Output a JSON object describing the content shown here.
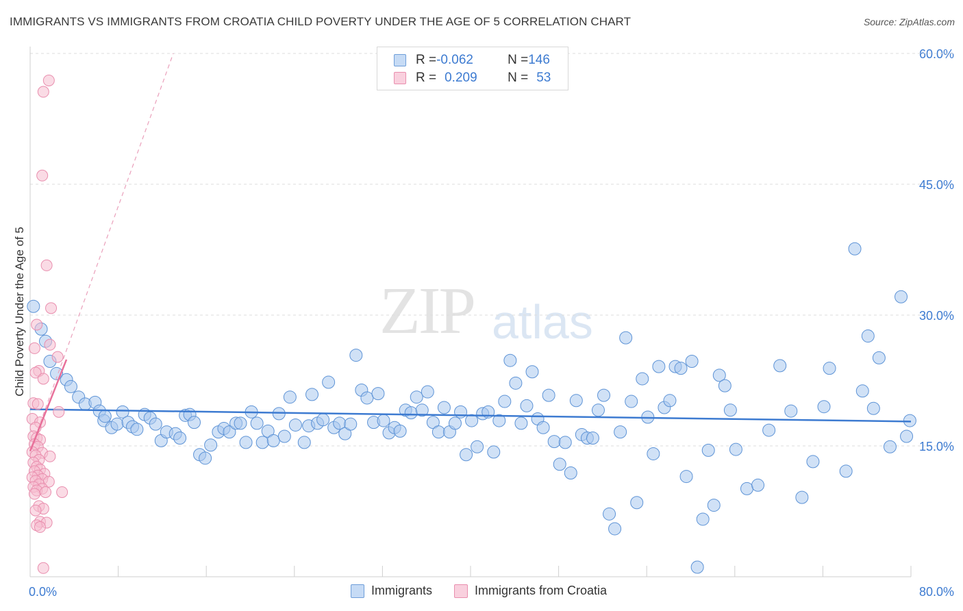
{
  "title": "IMMIGRANTS VS IMMIGRANTS FROM CROATIA CHILD POVERTY UNDER THE AGE OF 5 CORRELATION CHART",
  "source": "Source: ZipAtlas.com",
  "watermark": {
    "zip": "ZIP",
    "atlas": "atlas"
  },
  "legend_top": {
    "rows": [
      {
        "r_label": "R = ",
        "r_value": "-0.062",
        "n_label": "N = ",
        "n_value": "146"
      },
      {
        "r_label": "R = ",
        "r_value": "0.209",
        "n_label": "N = ",
        "n_value": "53"
      }
    ]
  },
  "legend_bottom": [
    "Immigrants",
    "Immigrants from Croatia"
  ],
  "colors": {
    "blue": "#3d7bd1",
    "blue_fill": "#aac8ee",
    "pink": "#e8709a",
    "pink_fill": "#f6bed0",
    "grid": "#dddddd",
    "tick_label": "#3d7bd1"
  },
  "chart_data": {
    "type": "scatter",
    "title": "IMMIGRANTS VS IMMIGRANTS FROM CROATIA CHILD POVERTY UNDER THE AGE OF 5 CORRELATION CHART",
    "xlabel": "",
    "ylabel": "Child Poverty Under the Age of 5",
    "xlim": [
      0,
      80
    ],
    "ylim": [
      0,
      60
    ],
    "x_tick_labels": [
      "0.0%",
      "80.0%"
    ],
    "y_ticks": [
      15,
      30,
      45,
      60
    ],
    "y_tick_labels": [
      "15.0%",
      "30.0%",
      "45.0%",
      "60.0%"
    ],
    "grid": true,
    "legend_position": "top-center",
    "series": [
      {
        "name": "Immigrants",
        "color": "#3d7bd1",
        "trend": {
          "x": [
            0,
            80
          ],
          "y": [
            19.2,
            17.8
          ]
        },
        "points": [
          [
            0.3,
            31.0
          ],
          [
            1.0,
            28.4
          ],
          [
            1.4,
            27.0
          ],
          [
            1.8,
            24.7
          ],
          [
            2.4,
            23.3
          ],
          [
            3.3,
            22.6
          ],
          [
            3.7,
            21.8
          ],
          [
            4.4,
            20.6
          ],
          [
            5.0,
            19.8
          ],
          [
            5.9,
            20.0
          ],
          [
            6.3,
            19.0
          ],
          [
            6.7,
            17.9
          ],
          [
            6.8,
            18.4
          ],
          [
            7.4,
            17.1
          ],
          [
            7.9,
            17.5
          ],
          [
            8.4,
            18.9
          ],
          [
            8.9,
            17.7
          ],
          [
            9.3,
            17.2
          ],
          [
            9.7,
            16.9
          ],
          [
            10.4,
            18.6
          ],
          [
            10.9,
            18.2
          ],
          [
            11.4,
            17.5
          ],
          [
            11.9,
            15.6
          ],
          [
            12.4,
            16.6
          ],
          [
            13.2,
            16.4
          ],
          [
            13.6,
            15.9
          ],
          [
            14.1,
            18.5
          ],
          [
            14.5,
            18.6
          ],
          [
            14.9,
            17.7
          ],
          [
            15.4,
            14.0
          ],
          [
            15.9,
            13.6
          ],
          [
            16.4,
            15.1
          ],
          [
            17.1,
            16.6
          ],
          [
            17.6,
            17.0
          ],
          [
            18.1,
            16.6
          ],
          [
            18.7,
            17.6
          ],
          [
            19.1,
            17.6
          ],
          [
            19.6,
            15.4
          ],
          [
            20.1,
            18.9
          ],
          [
            20.6,
            17.6
          ],
          [
            21.1,
            15.4
          ],
          [
            21.6,
            16.7
          ],
          [
            22.1,
            15.6
          ],
          [
            22.6,
            18.7
          ],
          [
            23.1,
            16.1
          ],
          [
            23.6,
            20.6
          ],
          [
            24.1,
            17.4
          ],
          [
            24.9,
            15.4
          ],
          [
            25.3,
            17.3
          ],
          [
            25.6,
            20.9
          ],
          [
            26.1,
            17.6
          ],
          [
            26.6,
            18.0
          ],
          [
            27.1,
            22.3
          ],
          [
            27.6,
            17.1
          ],
          [
            28.1,
            17.6
          ],
          [
            28.6,
            16.4
          ],
          [
            29.1,
            17.5
          ],
          [
            29.6,
            25.4
          ],
          [
            30.1,
            21.4
          ],
          [
            30.6,
            20.5
          ],
          [
            31.2,
            17.7
          ],
          [
            31.6,
            21.0
          ],
          [
            32.1,
            17.9
          ],
          [
            32.6,
            16.5
          ],
          [
            33.1,
            17.1
          ],
          [
            33.6,
            16.7
          ],
          [
            34.1,
            19.1
          ],
          [
            34.6,
            18.8
          ],
          [
            35.1,
            20.6
          ],
          [
            35.6,
            19.1
          ],
          [
            36.1,
            21.2
          ],
          [
            36.6,
            17.7
          ],
          [
            37.1,
            16.6
          ],
          [
            37.6,
            19.4
          ],
          [
            38.1,
            16.6
          ],
          [
            38.6,
            17.6
          ],
          [
            39.1,
            18.9
          ],
          [
            39.6,
            14.0
          ],
          [
            40.1,
            17.9
          ],
          [
            40.6,
            14.9
          ],
          [
            41.1,
            18.7
          ],
          [
            41.6,
            18.9
          ],
          [
            42.1,
            14.3
          ],
          [
            42.6,
            17.9
          ],
          [
            43.1,
            20.1
          ],
          [
            43.6,
            24.8
          ],
          [
            44.1,
            22.2
          ],
          [
            44.6,
            17.6
          ],
          [
            45.1,
            19.6
          ],
          [
            45.6,
            23.5
          ],
          [
            46.1,
            18.1
          ],
          [
            46.6,
            17.1
          ],
          [
            47.1,
            20.8
          ],
          [
            47.6,
            15.5
          ],
          [
            48.1,
            12.9
          ],
          [
            48.6,
            15.4
          ],
          [
            49.1,
            11.9
          ],
          [
            49.6,
            20.2
          ],
          [
            50.1,
            16.3
          ],
          [
            50.6,
            15.9
          ],
          [
            51.1,
            15.9
          ],
          [
            51.6,
            19.1
          ],
          [
            52.1,
            20.8
          ],
          [
            52.6,
            7.2
          ],
          [
            53.1,
            5.5
          ],
          [
            53.6,
            16.6
          ],
          [
            54.1,
            27.4
          ],
          [
            54.6,
            20.1
          ],
          [
            55.1,
            8.5
          ],
          [
            55.6,
            22.7
          ],
          [
            56.1,
            18.3
          ],
          [
            56.6,
            14.1
          ],
          [
            57.1,
            24.1
          ],
          [
            57.6,
            19.4
          ],
          [
            58.1,
            20.2
          ],
          [
            58.6,
            24.1
          ],
          [
            59.1,
            23.9
          ],
          [
            59.6,
            11.5
          ],
          [
            60.1,
            24.7
          ],
          [
            60.6,
            1.1
          ],
          [
            61.1,
            6.6
          ],
          [
            61.6,
            14.5
          ],
          [
            62.1,
            8.2
          ],
          [
            62.6,
            23.1
          ],
          [
            63.1,
            21.9
          ],
          [
            63.6,
            19.1
          ],
          [
            64.1,
            14.6
          ],
          [
            65.1,
            10.1
          ],
          [
            66.1,
            10.5
          ],
          [
            67.1,
            16.8
          ],
          [
            68.1,
            24.2
          ],
          [
            69.1,
            19.0
          ],
          [
            70.1,
            9.1
          ],
          [
            71.1,
            13.2
          ],
          [
            72.1,
            19.5
          ],
          [
            72.6,
            23.9
          ],
          [
            74.1,
            12.1
          ],
          [
            74.9,
            37.6
          ],
          [
            75.6,
            21.3
          ],
          [
            76.1,
            27.6
          ],
          [
            76.6,
            19.3
          ],
          [
            77.1,
            25.1
          ],
          [
            78.1,
            14.9
          ],
          [
            79.1,
            32.1
          ],
          [
            79.6,
            16.1
          ],
          [
            79.9,
            17.9
          ]
        ]
      },
      {
        "name": "Immigrants from Croatia",
        "color": "#e8709a",
        "trend": {
          "x": [
            0,
            3.3
          ],
          "y": [
            14.4,
            24.9
          ]
        },
        "trend_extended": {
          "x": [
            0,
            13
          ],
          "y": [
            14.4,
            60
          ]
        },
        "points": [
          [
            1.2,
            55.6
          ],
          [
            1.7,
            56.9
          ],
          [
            1.1,
            46.0
          ],
          [
            1.5,
            35.7
          ],
          [
            1.9,
            30.8
          ],
          [
            0.6,
            28.9
          ],
          [
            1.8,
            26.6
          ],
          [
            0.4,
            26.2
          ],
          [
            2.5,
            25.2
          ],
          [
            0.8,
            23.6
          ],
          [
            0.5,
            23.4
          ],
          [
            1.2,
            22.7
          ],
          [
            0.3,
            19.9
          ],
          [
            0.7,
            19.8
          ],
          [
            2.6,
            18.9
          ],
          [
            0.2,
            18.1
          ],
          [
            0.9,
            17.7
          ],
          [
            0.5,
            17.1
          ],
          [
            0.3,
            16.1
          ],
          [
            0.6,
            15.9
          ],
          [
            0.9,
            15.7
          ],
          [
            0.4,
            15.2
          ],
          [
            0.7,
            14.9
          ],
          [
            0.2,
            14.3
          ],
          [
            1.1,
            14.2
          ],
          [
            0.5,
            13.9
          ],
          [
            1.8,
            13.8
          ],
          [
            0.8,
            13.4
          ],
          [
            0.3,
            13.1
          ],
          [
            0.6,
            12.6
          ],
          [
            0.9,
            12.3
          ],
          [
            0.4,
            12.1
          ],
          [
            1.3,
            11.8
          ],
          [
            0.7,
            11.6
          ],
          [
            0.2,
            11.4
          ],
          [
            1.1,
            11.2
          ],
          [
            0.5,
            11.0
          ],
          [
            1.7,
            10.9
          ],
          [
            0.8,
            10.6
          ],
          [
            0.3,
            10.3
          ],
          [
            1.1,
            10.1
          ],
          [
            0.6,
            9.9
          ],
          [
            1.4,
            9.7
          ],
          [
            2.9,
            9.7
          ],
          [
            0.4,
            9.5
          ],
          [
            0.8,
            8.1
          ],
          [
            1.2,
            7.8
          ],
          [
            0.5,
            7.6
          ],
          [
            0.9,
            6.3
          ],
          [
            1.5,
            6.2
          ],
          [
            0.6,
            5.9
          ],
          [
            0.9,
            5.7
          ],
          [
            1.2,
            1.0
          ]
        ]
      }
    ]
  }
}
